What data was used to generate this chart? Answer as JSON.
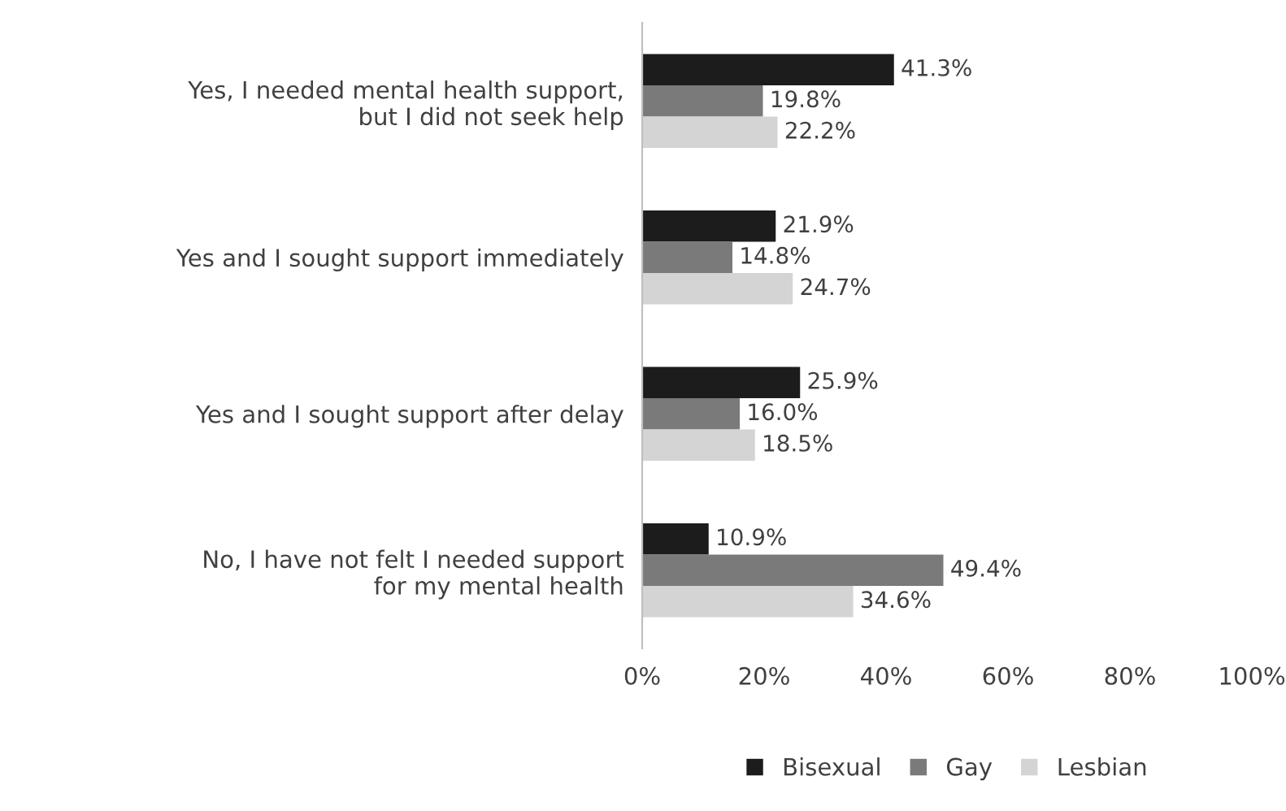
{
  "chart_data": {
    "type": "bar",
    "orientation": "horizontal",
    "categories": [
      "Yes, I needed mental health support,\nbut I did not seek help",
      "Yes and I sought support immediately",
      "Yes and I sought support after delay",
      "No, I have not felt I needed support\nfor my mental health"
    ],
    "series": [
      {
        "name": "Bisexual",
        "color": "#1c1c1c",
        "values": [
          41.3,
          21.9,
          25.9,
          10.9
        ],
        "value_labels": [
          "41.3%",
          "21.9%",
          "25.9%",
          "10.9%"
        ]
      },
      {
        "name": "Gay",
        "color": "#7a7a7a",
        "values": [
          19.8,
          14.8,
          16.0,
          49.4
        ],
        "value_labels": [
          "19.8%",
          "14.8%",
          "16.0%",
          "49.4%"
        ]
      },
      {
        "name": "Lesbian",
        "color": "#d4d4d4",
        "values": [
          22.2,
          24.7,
          18.5,
          34.6
        ],
        "value_labels": [
          "22.2%",
          "24.7%",
          "18.5%",
          "34.6%"
        ]
      }
    ],
    "xlim": [
      0,
      100
    ],
    "xticks": [
      {
        "value": 0,
        "label": "0%"
      },
      {
        "value": 20,
        "label": "20%"
      },
      {
        "value": 40,
        "label": "40%"
      },
      {
        "value": 60,
        "label": "60%"
      },
      {
        "value": 80,
        "label": "80%"
      },
      {
        "value": 100,
        "label": "100%"
      }
    ],
    "grid": false,
    "legend": "bottom"
  }
}
